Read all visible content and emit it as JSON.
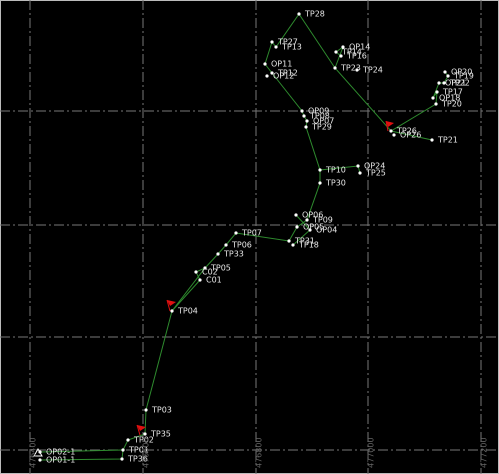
{
  "stations": [
    "TP28",
    "TP27",
    "TP13",
    "OP14",
    "TP14",
    "TP16",
    "TP23",
    "OP11",
    "TP12",
    "OP12",
    "OP20",
    "TP19",
    "OP21",
    "TP22",
    "TP17",
    "OP18",
    "TP20",
    "OP09",
    "TP08",
    "OP07",
    "TP29",
    "TP26",
    "OP26",
    "TP21",
    "TP10",
    "OP24",
    "TP25",
    "TP30",
    "OP06",
    "TP09",
    "OP05",
    "OP04",
    "TP07",
    "TP31",
    "TP18",
    "TP06",
    "TP33",
    "TP05",
    "C02",
    "C01",
    "TP04",
    "TP03",
    "TP35",
    "TP02",
    "TP01",
    "TP36",
    "OP02-1",
    "OP01-1",
    "TP24"
  ],
  "grid_labels": [
    "476400",
    "476600",
    "476800",
    "477000",
    "477200"
  ]
}
